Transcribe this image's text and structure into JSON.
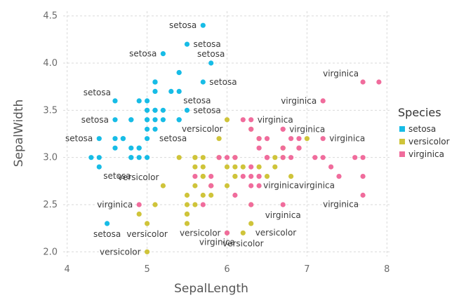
{
  "chart_data": {
    "type": "scatter",
    "xlabel": "SepalLength",
    "ylabel": "SepalWidth",
    "xlim": [
      3.95,
      8.05
    ],
    "ylim": [
      1.95,
      4.55
    ],
    "xticks": [
      4,
      5,
      6,
      7,
      8
    ],
    "yticks": [
      2.0,
      2.5,
      3.0,
      3.5,
      4.0,
      4.5
    ],
    "ytick_labels": [
      "2.0",
      "2.5",
      "3.0",
      "3.5",
      "4.0",
      "4.5"
    ],
    "grid": true,
    "legend": {
      "title": "Species",
      "position": "right"
    },
    "series": [
      {
        "name": "setosa",
        "color": "#17bce6",
        "points": [
          [
            5.1,
            3.5
          ],
          [
            4.9,
            3.0
          ],
          [
            4.7,
            3.2
          ],
          [
            4.6,
            3.1
          ],
          [
            5.0,
            3.6
          ],
          [
            5.4,
            3.9
          ],
          [
            4.6,
            3.4
          ],
          [
            5.0,
            3.4
          ],
          [
            4.4,
            2.9
          ],
          [
            4.9,
            3.1
          ],
          [
            5.4,
            3.7
          ],
          [
            4.8,
            3.4
          ],
          [
            4.8,
            3.0
          ],
          [
            4.3,
            3.0
          ],
          [
            5.8,
            4.0
          ],
          [
            5.7,
            4.4
          ],
          [
            5.4,
            3.9
          ],
          [
            5.1,
            3.5
          ],
          [
            5.7,
            3.8
          ],
          [
            5.1,
            3.8
          ],
          [
            5.4,
            3.4
          ],
          [
            5.1,
            3.7
          ],
          [
            4.6,
            3.6
          ],
          [
            5.1,
            3.3
          ],
          [
            4.8,
            3.4
          ],
          [
            5.0,
            3.0
          ],
          [
            5.0,
            3.4
          ],
          [
            5.2,
            3.5
          ],
          [
            5.2,
            3.4
          ],
          [
            4.7,
            3.2
          ],
          [
            4.8,
            3.1
          ],
          [
            5.4,
            3.4
          ],
          [
            5.2,
            4.1
          ],
          [
            5.5,
            4.2
          ],
          [
            4.9,
            3.1
          ],
          [
            5.0,
            3.2
          ],
          [
            5.5,
            3.5
          ],
          [
            4.9,
            3.6
          ],
          [
            4.4,
            3.0
          ],
          [
            5.1,
            3.4
          ],
          [
            5.0,
            3.5
          ],
          [
            4.5,
            2.3
          ],
          [
            4.4,
            3.2
          ],
          [
            5.0,
            3.5
          ],
          [
            5.1,
            3.8
          ],
          [
            4.8,
            3.0
          ],
          [
            5.1,
            3.8
          ],
          [
            4.6,
            3.2
          ],
          [
            5.3,
            3.7
          ],
          [
            5.0,
            3.3
          ]
        ]
      },
      {
        "name": "versicolor",
        "color": "#cfc43a",
        "points": [
          [
            7.0,
            3.2
          ],
          [
            6.4,
            3.2
          ],
          [
            6.9,
            3.1
          ],
          [
            5.5,
            2.3
          ],
          [
            6.5,
            2.8
          ],
          [
            5.7,
            2.8
          ],
          [
            6.3,
            3.3
          ],
          [
            4.9,
            2.4
          ],
          [
            6.6,
            2.9
          ],
          [
            5.2,
            2.7
          ],
          [
            5.0,
            2.0
          ],
          [
            5.9,
            3.0
          ],
          [
            6.0,
            2.2
          ],
          [
            6.1,
            2.9
          ],
          [
            5.6,
            2.9
          ],
          [
            6.7,
            3.1
          ],
          [
            5.6,
            3.0
          ],
          [
            5.8,
            2.7
          ],
          [
            6.2,
            2.2
          ],
          [
            5.6,
            2.5
          ],
          [
            5.9,
            3.2
          ],
          [
            6.1,
            2.8
          ],
          [
            6.3,
            2.5
          ],
          [
            6.1,
            2.8
          ],
          [
            6.4,
            2.9
          ],
          [
            6.6,
            3.0
          ],
          [
            6.8,
            2.8
          ],
          [
            6.7,
            3.0
          ],
          [
            6.0,
            2.9
          ],
          [
            5.7,
            2.6
          ],
          [
            5.5,
            2.4
          ],
          [
            5.5,
            2.4
          ],
          [
            5.8,
            2.7
          ],
          [
            6.0,
            2.7
          ],
          [
            5.4,
            3.0
          ],
          [
            6.0,
            3.4
          ],
          [
            6.7,
            3.1
          ],
          [
            6.3,
            2.3
          ],
          [
            5.6,
            3.0
          ],
          [
            5.5,
            2.5
          ],
          [
            5.5,
            2.6
          ],
          [
            6.1,
            3.0
          ],
          [
            5.8,
            2.6
          ],
          [
            5.0,
            2.3
          ],
          [
            5.6,
            2.7
          ],
          [
            5.7,
            3.0
          ],
          [
            5.7,
            2.9
          ],
          [
            6.2,
            2.9
          ],
          [
            5.1,
            2.5
          ],
          [
            5.7,
            2.8
          ]
        ]
      },
      {
        "name": "virginica",
        "color": "#f06c9c",
        "points": [
          [
            6.3,
            3.3
          ],
          [
            5.8,
            2.7
          ],
          [
            7.1,
            3.0
          ],
          [
            6.3,
            2.9
          ],
          [
            6.5,
            3.0
          ],
          [
            7.6,
            3.0
          ],
          [
            4.9,
            2.5
          ],
          [
            7.3,
            2.9
          ],
          [
            6.7,
            2.5
          ],
          [
            7.2,
            3.6
          ],
          [
            6.5,
            3.2
          ],
          [
            6.4,
            2.7
          ],
          [
            6.8,
            3.0
          ],
          [
            5.7,
            2.5
          ],
          [
            5.8,
            2.8
          ],
          [
            6.4,
            3.2
          ],
          [
            6.5,
            3.0
          ],
          [
            7.7,
            3.8
          ],
          [
            7.7,
            2.6
          ],
          [
            6.0,
            2.2
          ],
          [
            6.9,
            3.2
          ],
          [
            5.6,
            2.8
          ],
          [
            7.7,
            2.8
          ],
          [
            6.3,
            2.7
          ],
          [
            6.7,
            3.3
          ],
          [
            7.2,
            3.2
          ],
          [
            6.2,
            2.8
          ],
          [
            6.1,
            3.0
          ],
          [
            6.4,
            2.8
          ],
          [
            7.2,
            3.0
          ],
          [
            7.4,
            2.8
          ],
          [
            7.9,
            3.8
          ],
          [
            6.4,
            2.8
          ],
          [
            6.3,
            2.8
          ],
          [
            6.1,
            2.6
          ],
          [
            7.7,
            3.0
          ],
          [
            6.3,
            3.4
          ],
          [
            6.4,
            3.1
          ],
          [
            6.0,
            3.0
          ],
          [
            6.9,
            3.1
          ],
          [
            6.7,
            3.1
          ],
          [
            6.9,
            3.1
          ],
          [
            5.8,
            2.7
          ],
          [
            6.8,
            3.2
          ],
          [
            6.7,
            3.3
          ],
          [
            6.7,
            3.0
          ],
          [
            6.3,
            2.5
          ],
          [
            6.5,
            3.0
          ],
          [
            6.2,
            3.4
          ],
          [
            5.9,
            3.0
          ]
        ]
      }
    ],
    "annotations": [
      {
        "text": "setosa",
        "x": 5.7,
        "y": 4.4,
        "species": "setosa",
        "anchor": "end"
      },
      {
        "text": "setosa",
        "x": 5.5,
        "y": 4.2,
        "species": "setosa",
        "anchor": "start"
      },
      {
        "text": "setosa",
        "x": 5.2,
        "y": 4.1,
        "species": "setosa",
        "anchor": "end"
      },
      {
        "text": "setosa",
        "x": 5.8,
        "y": 4.0,
        "species": "setosa",
        "anchor": "middle-above"
      },
      {
        "text": "setosa",
        "x": 5.7,
        "y": 3.8,
        "species": "setosa",
        "anchor": "start"
      },
      {
        "text": "setosa",
        "x": 4.6,
        "y": 3.6,
        "species": "setosa",
        "anchor": "end-above"
      },
      {
        "text": "setosa",
        "x": 5.4,
        "y": 3.7,
        "species": "setosa",
        "anchor": "start-below"
      },
      {
        "text": "setosa",
        "x": 5.5,
        "y": 3.5,
        "species": "setosa",
        "anchor": "start"
      },
      {
        "text": "setosa",
        "x": 4.6,
        "y": 3.4,
        "species": "setosa",
        "anchor": "end"
      },
      {
        "text": "setosa",
        "x": 5.1,
        "y": 3.3,
        "species": "setosa",
        "anchor": "start-below"
      },
      {
        "text": "setosa",
        "x": 4.4,
        "y": 3.2,
        "species": "setosa",
        "anchor": "end"
      },
      {
        "text": "setosa",
        "x": 4.4,
        "y": 2.9,
        "species": "setosa",
        "anchor": "start-below"
      },
      {
        "text": "setosa",
        "x": 4.5,
        "y": 2.3,
        "species": "setosa",
        "anchor": "middle-below"
      },
      {
        "text": "versicolor",
        "x": 6.0,
        "y": 3.4,
        "species": "versicolor",
        "anchor": "end-below"
      },
      {
        "text": "versicolor",
        "x": 5.2,
        "y": 2.7,
        "species": "versicolor",
        "anchor": "end-above"
      },
      {
        "text": "versicolor",
        "x": 5.0,
        "y": 2.3,
        "species": "versicolor",
        "anchor": "middle-below"
      },
      {
        "text": "versicolor",
        "x": 5.0,
        "y": 2.0,
        "species": "versicolor",
        "anchor": "end"
      },
      {
        "text": "versicolor",
        "x": 6.0,
        "y": 2.2,
        "species": "versicolor",
        "anchor": "end"
      },
      {
        "text": "versicolor",
        "x": 6.3,
        "y": 2.3,
        "species": "versicolor",
        "anchor": "start-below"
      },
      {
        "text": "versicolor",
        "x": 6.2,
        "y": 2.2,
        "species": "versicolor",
        "anchor": "middle-below"
      },
      {
        "text": "virginica",
        "x": 7.7,
        "y": 3.8,
        "species": "virginica",
        "anchor": "end-above"
      },
      {
        "text": "virginica",
        "x": 7.2,
        "y": 3.6,
        "species": "virginica",
        "anchor": "end"
      },
      {
        "text": "virginica",
        "x": 6.3,
        "y": 3.4,
        "species": "virginica",
        "anchor": "start"
      },
      {
        "text": "virginica",
        "x": 6.7,
        "y": 3.3,
        "species": "virginica",
        "anchor": "start"
      },
      {
        "text": "virginica",
        "x": 7.2,
        "y": 3.2,
        "species": "virginica",
        "anchor": "start"
      },
      {
        "text": "virginica",
        "x": 6.4,
        "y": 2.8,
        "species": "virginica",
        "anchor": "start-below"
      },
      {
        "text": "virginica",
        "x": 7.4,
        "y": 2.8,
        "species": "virginica",
        "anchor": "end-below"
      },
      {
        "text": "virginica",
        "x": 7.7,
        "y": 2.6,
        "species": "virginica",
        "anchor": "end-below"
      },
      {
        "text": "virginica",
        "x": 4.9,
        "y": 2.5,
        "species": "virginica",
        "anchor": "end"
      },
      {
        "text": "virginica",
        "x": 6.7,
        "y": 2.5,
        "species": "virginica",
        "anchor": "middle-below"
      },
      {
        "text": "virginica",
        "x": 5.6,
        "y": 2.2,
        "species": "virginica",
        "anchor": "start-below"
      }
    ]
  }
}
